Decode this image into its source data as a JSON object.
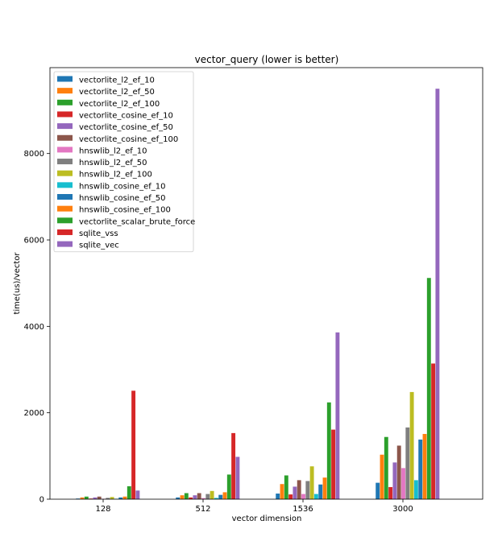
{
  "chart_data": {
    "type": "bar",
    "title": "vector_query (lower is better)",
    "xlabel": "vector dimension",
    "ylabel": "time(us)/vector",
    "categories": [
      "128",
      "512",
      "1536",
      "3000"
    ],
    "ylim": [
      0,
      10000
    ],
    "yticks": [
      0,
      2000,
      4000,
      6000,
      8000
    ],
    "grid": false,
    "legend_position": "top-left",
    "series": [
      {
        "name": "vectorlite_l2_ef_10",
        "color": "#1f77b4",
        "values": [
          15,
          40,
          130,
          380
        ]
      },
      {
        "name": "vectorlite_l2_ef_50",
        "color": "#ff7f0e",
        "values": [
          40,
          90,
          350,
          1030
        ]
      },
      {
        "name": "vectorlite_l2_ef_100",
        "color": "#2ca02c",
        "values": [
          60,
          140,
          550,
          1440
        ]
      },
      {
        "name": "vectorlite_cosine_ef_10",
        "color": "#d62728",
        "values": [
          15,
          40,
          110,
          280
        ]
      },
      {
        "name": "vectorlite_cosine_ef_50",
        "color": "#9467bd",
        "values": [
          40,
          90,
          290,
          850
        ]
      },
      {
        "name": "vectorlite_cosine_ef_100",
        "color": "#8c564b",
        "values": [
          60,
          140,
          440,
          1240
        ]
      },
      {
        "name": "hnswlib_l2_ef_10",
        "color": "#e377c2",
        "values": [
          10,
          25,
          120,
          720
        ]
      },
      {
        "name": "hnswlib_l2_ef_50",
        "color": "#7f7f7f",
        "values": [
          30,
          120,
          420,
          1660
        ]
      },
      {
        "name": "hnswlib_l2_ef_100",
        "color": "#bcbd22",
        "values": [
          50,
          190,
          760,
          2480
        ]
      },
      {
        "name": "hnswlib_cosine_ef_10",
        "color": "#17becf",
        "values": [
          10,
          30,
          120,
          440
        ]
      },
      {
        "name": "hnswlib_cosine_ef_50",
        "color": "#1f77b4",
        "values": [
          40,
          100,
          340,
          1380
        ]
      },
      {
        "name": "hnswlib_cosine_ef_100",
        "color": "#ff7f0e",
        "values": [
          60,
          160,
          500,
          1510
        ]
      },
      {
        "name": "vectorlite_scalar_brute_force",
        "color": "#2ca02c",
        "values": [
          300,
          570,
          2240,
          5120
        ]
      },
      {
        "name": "sqlite_vss",
        "color": "#d62728",
        "values": [
          2510,
          1530,
          1610,
          3140
        ]
      },
      {
        "name": "sqlite_vec",
        "color": "#9467bd",
        "values": [
          200,
          980,
          3860,
          9500
        ]
      }
    ]
  }
}
